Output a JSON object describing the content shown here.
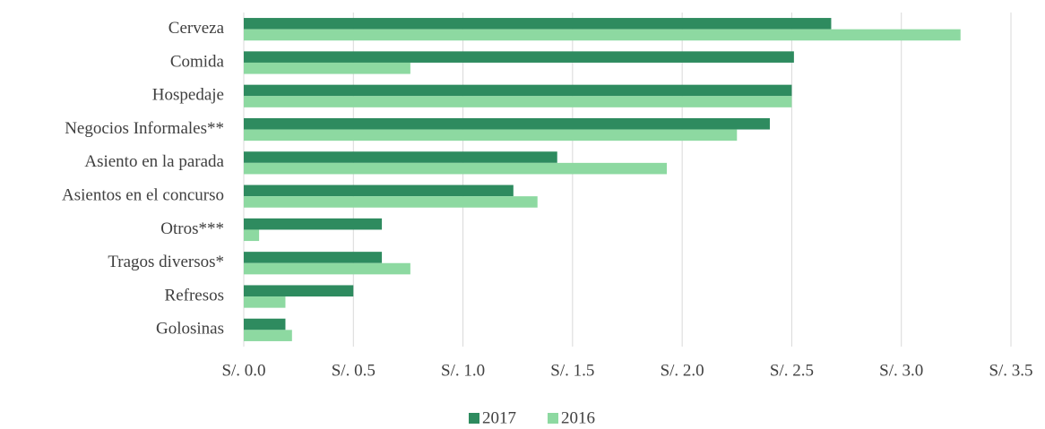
{
  "chart_data": {
    "type": "bar",
    "orientation": "horizontal",
    "categories": [
      "Cerveza",
      "Comida",
      "Hospedaje",
      "Negocios Informales**",
      "Asiento en la parada",
      "Asientos en el concurso",
      "Otros***",
      "Tragos diversos*",
      "Refresos",
      "Golosinas"
    ],
    "series": [
      {
        "name": "2017",
        "color": "#2e8b5f",
        "values": [
          2.68,
          2.51,
          2.5,
          2.4,
          1.43,
          1.23,
          0.63,
          0.63,
          0.5,
          0.19
        ]
      },
      {
        "name": "2016",
        "color": "#8dd9a1",
        "values": [
          3.27,
          0.76,
          2.5,
          2.25,
          1.93,
          1.34,
          0.07,
          0.76,
          0.19,
          0.22
        ]
      }
    ],
    "xlim": [
      0,
      3.5
    ],
    "xticks": [
      {
        "value": 0,
        "label": "S/. 0.0"
      },
      {
        "value": 0.5,
        "label": "S/. 0.5"
      },
      {
        "value": 1,
        "label": "S/. 1.0"
      },
      {
        "value": 1.5,
        "label": "S/. 1.5"
      },
      {
        "value": 2,
        "label": "S/. 2.0"
      },
      {
        "value": 2.5,
        "label": "S/. 2.5"
      },
      {
        "value": 3,
        "label": "S/. 3.0"
      },
      {
        "value": 3.5,
        "label": "S/. 3.5"
      }
    ],
    "grid": true,
    "legend": "bottom"
  }
}
